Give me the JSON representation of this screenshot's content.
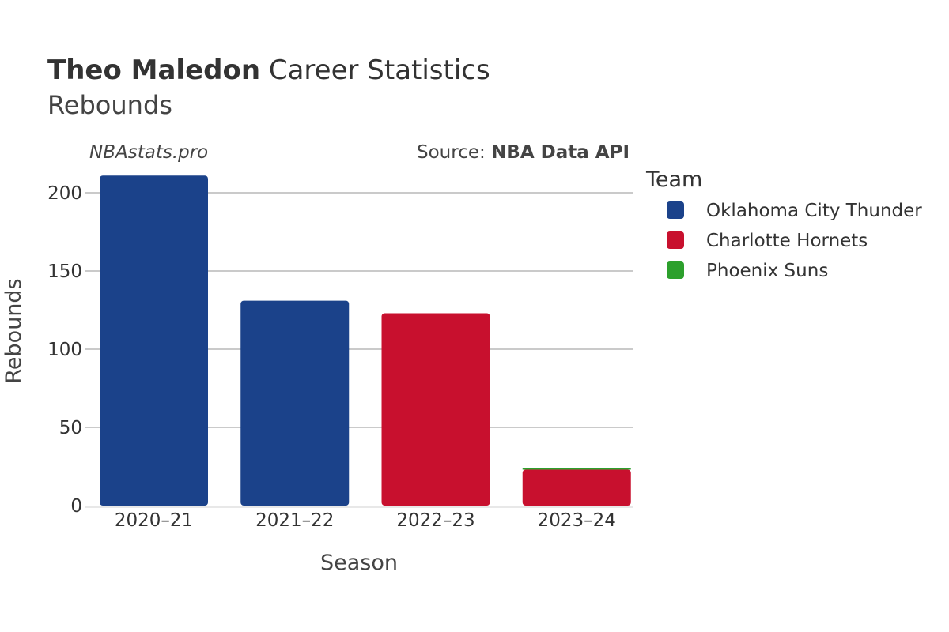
{
  "title": {
    "bold": "Theo Maledon",
    "rest": " Career Statistics",
    "subtitle": "Rebounds"
  },
  "watermark": "NBAstats.pro",
  "source": {
    "prefix": "Source: ",
    "name": "NBA Data API"
  },
  "colors": {
    "Oklahoma City Thunder": "#1b428a",
    "Charlotte Hornets": "#c8102e",
    "Phoenix Suns": "#2ca02c",
    "grid": "#aaaaaa",
    "baseline": "#e8e8e8"
  },
  "chart_data": {
    "type": "bar",
    "title": "Theo Maledon Career Statistics",
    "subtitle": "Rebounds",
    "xlabel": "Season",
    "ylabel": "Rebounds",
    "categories": [
      "2020–21",
      "2021–22",
      "2022–23",
      "2023–24"
    ],
    "ylim": [
      0,
      212
    ],
    "yticks": [
      0,
      50,
      100,
      150,
      200
    ],
    "grid": true,
    "legend_title": "Team",
    "legend_position": "right",
    "legend": [
      "Oklahoma City Thunder",
      "Charlotte Hornets",
      "Phoenix Suns"
    ],
    "bars": [
      {
        "season": "2020–21",
        "segments": [
          {
            "team": "Oklahoma City Thunder",
            "value": 211
          }
        ]
      },
      {
        "season": "2021–22",
        "segments": [
          {
            "team": "Oklahoma City Thunder",
            "value": 131
          }
        ]
      },
      {
        "season": "2022–23",
        "segments": [
          {
            "team": "Charlotte Hornets",
            "value": 123
          }
        ]
      },
      {
        "season": "2023–24",
        "segments": [
          {
            "team": "Charlotte Hornets",
            "value": 23
          },
          {
            "team": "Phoenix Suns",
            "value": 1
          }
        ]
      }
    ]
  }
}
